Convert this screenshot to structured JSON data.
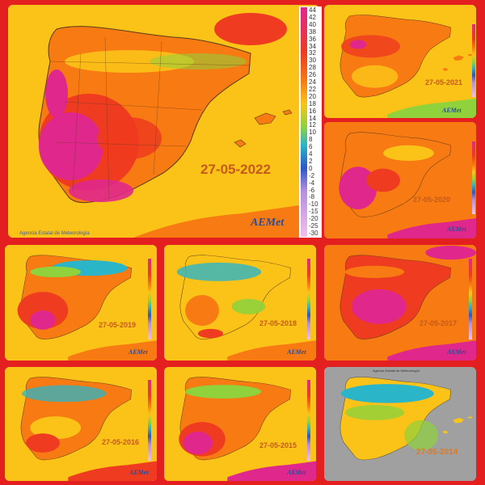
{
  "main": {
    "date": "27-05-2022",
    "agency": "Agencia Estatal de Meteorología",
    "logo": "AEMet"
  },
  "legend": {
    "ticks": [
      "44",
      "42",
      "40",
      "38",
      "36",
      "34",
      "32",
      "30",
      "28",
      "26",
      "24",
      "22",
      "20",
      "18",
      "16",
      "14",
      "12",
      "10",
      "8",
      "6",
      "4",
      "2",
      "0",
      "-2",
      "-4",
      "-6",
      "-8",
      "-10",
      "-15",
      "-20",
      "-25",
      "-30"
    ]
  },
  "colors": {
    "frame": "#e41f1f",
    "magenta": "#e0288c",
    "red": "#ef3b1f",
    "orange": "#f77a12",
    "yellow": "#fbc318",
    "green": "#8fd23c",
    "cyan": "#2bb5c8",
    "sea": "#c8c8c8"
  },
  "panels": [
    {
      "date": "27-05-2021",
      "logo": "AEMet"
    },
    {
      "date": "27-05-2020",
      "logo": "AEMet"
    },
    {
      "date": "27-05-2019",
      "logo": "AEMet"
    },
    {
      "date": "27-05-2018",
      "logo": "AEMet"
    },
    {
      "date": "27-05-2017",
      "logo": "AEMet"
    },
    {
      "date": "27-05-2016",
      "logo": "AEMet"
    },
    {
      "date": "27-05-2015",
      "logo": "AEMet"
    },
    {
      "date": "27-05-2014",
      "agency": "Agencia Estatal de Meteorología"
    }
  ]
}
